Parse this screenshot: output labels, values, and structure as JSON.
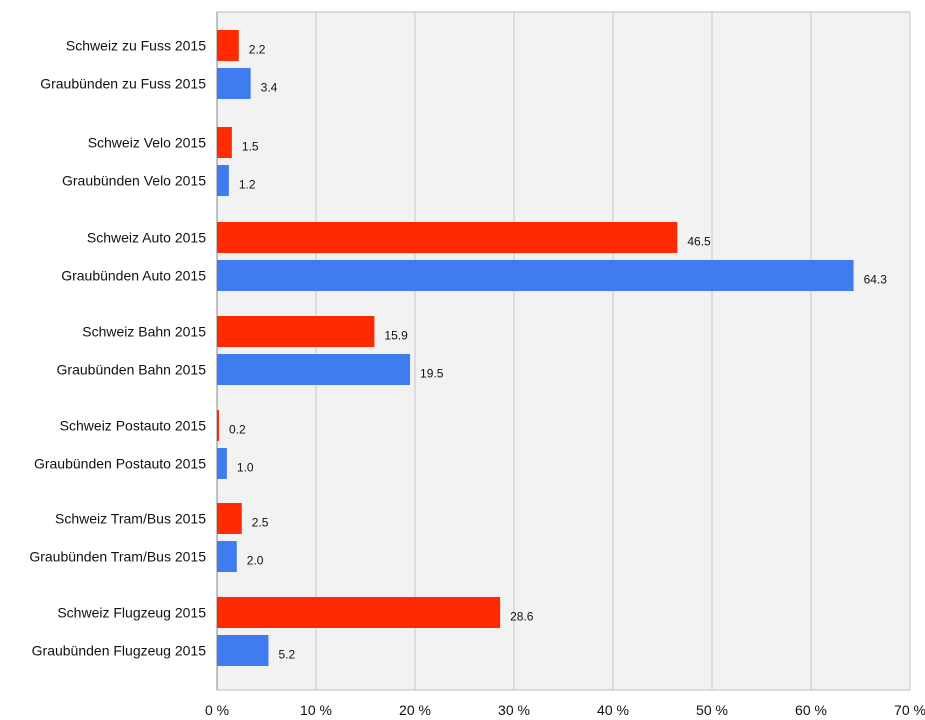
{
  "chart_data": {
    "type": "bar",
    "orientation": "horizontal",
    "categories": [
      "Schweiz zu Fuss 2015",
      "Graubünden zu Fuss 2015",
      "Schweiz Velo 2015",
      "Graubünden Velo 2015",
      "Schweiz Auto 2015",
      "Graubünden Auto 2015",
      "Schweiz Bahn 2015",
      "Graubünden Bahn 2015",
      "Schweiz Postauto 2015",
      "Graubünden Postauto 2015",
      "Schweiz Tram/Bus 2015",
      "Graubünden Tram/Bus 2015",
      "Schweiz Flugzeug 2015",
      "Graubünden Flugzeug 2015"
    ],
    "values": [
      2.2,
      3.4,
      1.5,
      1.2,
      46.5,
      64.3,
      15.9,
      19.5,
      0.2,
      1.0,
      2.5,
      2.0,
      28.6,
      5.2
    ],
    "value_labels": [
      "2.2",
      "3.4",
      "1.5",
      "1.2",
      "46.5",
      "64.3",
      "15.9",
      "19.5",
      "0.2",
      "1.0",
      "2.5",
      "2.0",
      "28.6",
      "5.2"
    ],
    "bar_colors": [
      "#ff2a00",
      "#3f7cf0",
      "#ff2a00",
      "#3f7cf0",
      "#ff2a00",
      "#3f7cf0",
      "#ff2a00",
      "#3f7cf0",
      "#ff2a00",
      "#3f7cf0",
      "#ff2a00",
      "#3f7cf0",
      "#ff2a00",
      "#3f7cf0"
    ],
    "xlim": [
      0,
      70
    ],
    "x_ticks": [
      0,
      10,
      20,
      30,
      40,
      50,
      60,
      70
    ],
    "x_tick_labels": [
      "0 %",
      "10 %",
      "20 %",
      "30 %",
      "40 %",
      "50 %",
      "60 %",
      "70 %"
    ],
    "grid": true,
    "title": "",
    "xlabel": "",
    "ylabel": ""
  },
  "colors": {
    "schweiz": "#ff2a00",
    "graubuenden": "#3f7cf0",
    "plot_background": "#f2f2f2",
    "grid": "#c8c8c8"
  }
}
